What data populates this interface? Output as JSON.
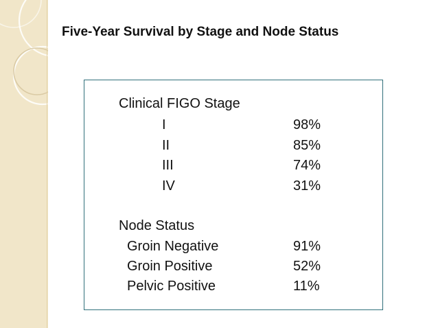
{
  "slide": {
    "title": "Five-Year Survival by Stage and Node Status"
  },
  "theme": {
    "accent": "#2f6f7a",
    "sidebar_color": "#f1e6c9"
  },
  "figo_section": {
    "heading": "Clinical FIGO Stage",
    "rows": [
      {
        "label": "I",
        "value": "98%"
      },
      {
        "label": "II",
        "value": "85%"
      },
      {
        "label": "III",
        "value": "74%"
      },
      {
        "label": "IV",
        "value": "31%"
      }
    ]
  },
  "node_section": {
    "heading": "Node Status",
    "rows": [
      {
        "label": "Groin Negative",
        "value": "91%"
      },
      {
        "label": "Groin Positive",
        "value": "52%"
      },
      {
        "label": "Pelvic Positive",
        "value": "11%"
      }
    ]
  }
}
